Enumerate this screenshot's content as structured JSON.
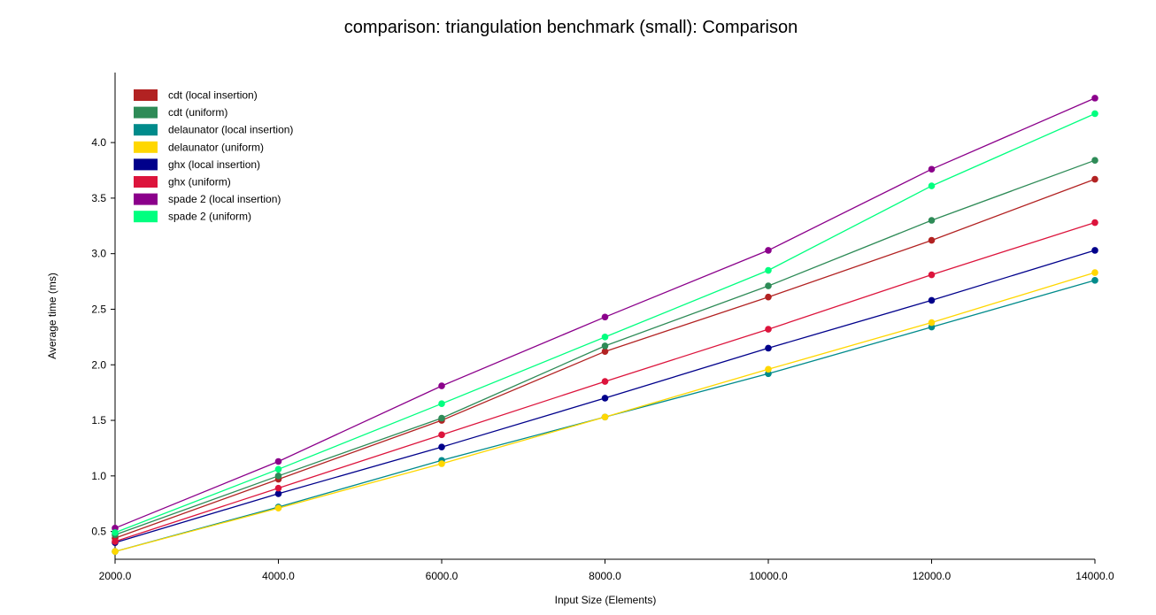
{
  "chart_data": {
    "type": "line",
    "title": "comparison: triangulation benchmark (small): Comparison",
    "xlabel": "Input Size (Elements)",
    "ylabel": "Average time (ms)",
    "x": [
      2000,
      4000,
      6000,
      8000,
      10000,
      12000,
      14000
    ],
    "x_tick_labels": [
      "2000.0",
      "4000.0",
      "6000.0",
      "8000.0",
      "10000.0",
      "12000.0",
      "14000.0"
    ],
    "y_ticks": [
      0.5,
      1.0,
      1.5,
      2.0,
      2.5,
      3.0,
      3.5,
      4.0
    ],
    "y_tick_labels": [
      "0.5",
      "1.0",
      "1.5",
      "2.0",
      "2.5",
      "3.0",
      "3.5",
      "4.0"
    ],
    "xlim": [
      2000,
      14000
    ],
    "ylim": [
      0.25,
      4.63
    ],
    "grid": false,
    "legend_position": "top-left",
    "series": [
      {
        "name": "cdt (local insertion)",
        "color": "#b22222",
        "values": [
          0.44,
          0.97,
          1.5,
          2.12,
          2.61,
          3.12,
          3.67
        ]
      },
      {
        "name": "cdt (uniform)",
        "color": "#2e8b57",
        "values": [
          0.47,
          1.0,
          1.52,
          2.17,
          2.71,
          3.3,
          3.84
        ]
      },
      {
        "name": "delaunator (local insertion)",
        "color": "#008b8b",
        "values": [
          0.32,
          0.72,
          1.14,
          1.53,
          1.92,
          2.34,
          2.76
        ]
      },
      {
        "name": "delaunator (uniform)",
        "color": "#ffd700",
        "values": [
          0.32,
          0.71,
          1.11,
          1.53,
          1.96,
          2.38,
          2.83
        ]
      },
      {
        "name": "ghx (local insertion)",
        "color": "#00008b",
        "values": [
          0.4,
          0.84,
          1.26,
          1.7,
          2.15,
          2.58,
          3.03
        ]
      },
      {
        "name": "ghx (uniform)",
        "color": "#dc143c",
        "values": [
          0.41,
          0.89,
          1.37,
          1.85,
          2.32,
          2.81,
          3.28
        ]
      },
      {
        "name": "spade 2 (local insertion)",
        "color": "#8b008b",
        "values": [
          0.53,
          1.13,
          1.81,
          2.43,
          3.03,
          3.76,
          4.4
        ]
      },
      {
        "name": "spade 2 (uniform)",
        "color": "#00ff7f",
        "values": [
          0.49,
          1.06,
          1.65,
          2.25,
          2.85,
          3.61,
          4.26
        ]
      }
    ]
  }
}
